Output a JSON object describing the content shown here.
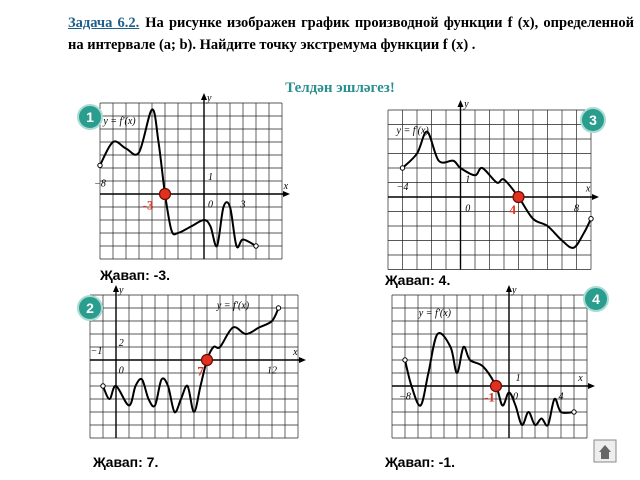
{
  "header": {
    "task_label": "Задача 6.2.",
    "text": "На рисунке изображен график производной функции f (x), определенной на интервале (a; b). Найдите точку  экстремума функции f (x) ."
  },
  "subtitle": "Телдән эшләгез!",
  "panels": [
    {
      "number": "1",
      "labels": [
        "y",
        "y = f′(x)",
        "−8",
        "1",
        "0",
        "3",
        "x"
      ],
      "point_label": "-3",
      "answer": "Җавап: -3."
    },
    {
      "number": "2",
      "labels": [
        "y",
        "y = f′(x)",
        "−1",
        "2",
        "0",
        "12",
        "x"
      ],
      "point_label": "7",
      "answer": "Җавап: 7."
    },
    {
      "number": "3",
      "labels": [
        "y",
        "y = f′(x)",
        "−4",
        "1",
        "0",
        "8",
        "x"
      ],
      "point_label": "4",
      "answer": "Җавап: 4."
    },
    {
      "number": "4",
      "labels": [
        "y",
        "y = f′(x)",
        "−8",
        "1",
        "0",
        "4",
        "x"
      ],
      "point_label": "-1",
      "answer": "Җавап: -1."
    }
  ]
}
